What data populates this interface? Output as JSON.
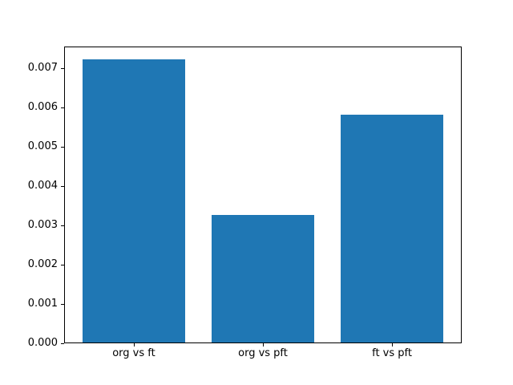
{
  "chart_data": {
    "type": "bar",
    "title": "",
    "xlabel": "",
    "ylabel": "",
    "categories": [
      "org vs ft",
      "org vs pft",
      "ft vs pft"
    ],
    "values": [
      0.0072,
      0.00324,
      0.0058
    ],
    "bar_color": "#1f77b4",
    "bar_width_units": 0.8,
    "yticks": [
      0.0,
      0.001,
      0.002,
      0.003,
      0.004,
      0.005,
      0.006,
      0.007
    ],
    "ytick_labels": [
      "0.000",
      "0.001",
      "0.002",
      "0.003",
      "0.004",
      "0.005",
      "0.006",
      "0.007"
    ],
    "ylim": [
      0,
      0.00756
    ],
    "xlim": [
      -0.54,
      2.54
    ],
    "grid": false,
    "legend": null,
    "spine_color": "#000000",
    "background_color": "#ffffff"
  }
}
